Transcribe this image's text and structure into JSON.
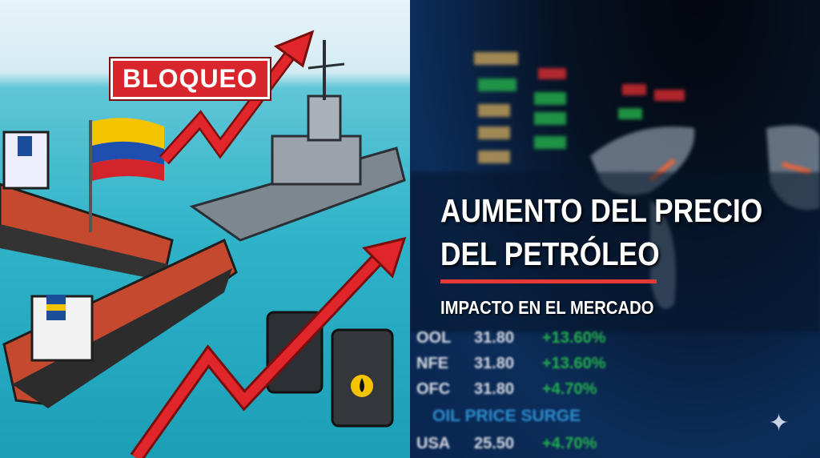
{
  "illustration": {
    "label": "BLOQUEO"
  },
  "headline": {
    "line1": "AUMENTO DEL PRECIO",
    "line2": "DEL PETRÓLEO",
    "subtitle": "IMPACTO EN EL MERCADO"
  },
  "ticker": {
    "rows": [
      {
        "symbol": "OOL",
        "price": "31.80",
        "change": "+13.60%"
      },
      {
        "symbol": "NFE",
        "price": "31.80",
        "change": "+13.60%"
      },
      {
        "symbol": "OFC",
        "price": "31.80",
        "change": "+4.70%"
      },
      {
        "symbol": "USA",
        "price": "25.50",
        "change": "+4.70%"
      }
    ],
    "banner": "OIL PRICE SURGE"
  },
  "colors": {
    "accent_red": "#e53935",
    "sea": "#2fb3c9",
    "board": "#0c2d5a"
  },
  "icons": [
    "sparkle-icon",
    "oil-drop-icon"
  ]
}
